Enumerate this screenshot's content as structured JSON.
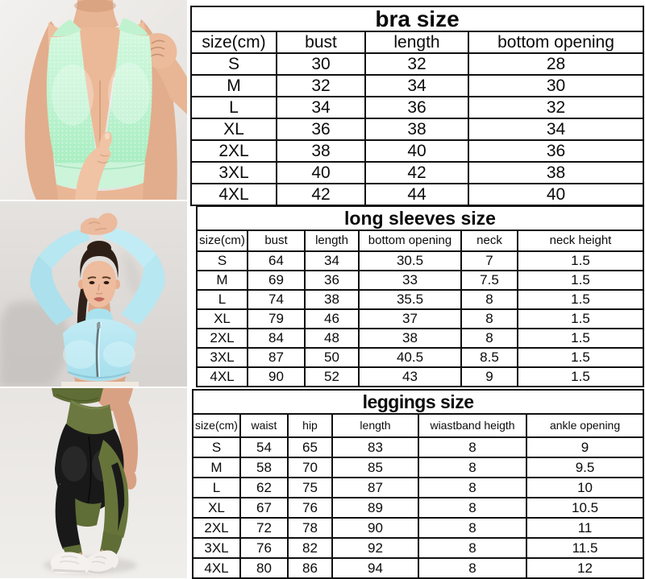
{
  "photos": [
    {
      "alt": "Model torso wearing a mint green textured halter sports bra, one hand adjusting the shoulder strap and the other at the center of the bra",
      "accent_color": "#b9f0c9"
    },
    {
      "alt": "Model with arms raised overhead wearing a light blue zip-front long sleeve crop top",
      "accent_color": "#b5e8f2"
    },
    {
      "alt": "Rear view of model legs wearing black and olive green color-block leggings with white sneakers",
      "accent_color": "#5f6d36",
      "secondary_color": "#1a1a1a"
    }
  ],
  "tables": [
    {
      "title": "bra size",
      "columns": [
        "size(cm)",
        "bust",
        "length",
        "bottom opening"
      ],
      "rows": [
        [
          "S",
          "30",
          "32",
          "28"
        ],
        [
          "M",
          "32",
          "34",
          "30"
        ],
        [
          "L",
          "34",
          "36",
          "32"
        ],
        [
          "XL",
          "36",
          "38",
          "34"
        ],
        [
          "2XL",
          "38",
          "40",
          "36"
        ],
        [
          "3XL",
          "40",
          "42",
          "38"
        ],
        [
          "4XL",
          "42",
          "44",
          "40"
        ]
      ]
    },
    {
      "title": "long sleeves size",
      "columns": [
        "size(cm)",
        "bust",
        "length",
        "bottom opening",
        "neck",
        "neck height"
      ],
      "rows": [
        [
          "S",
          "64",
          "34",
          "30.5",
          "7",
          "1.5"
        ],
        [
          "M",
          "69",
          "36",
          "33",
          "7.5",
          "1.5"
        ],
        [
          "L",
          "74",
          "38",
          "35.5",
          "8",
          "1.5"
        ],
        [
          "XL",
          "79",
          "46",
          "37",
          "8",
          "1.5"
        ],
        [
          "2XL",
          "84",
          "48",
          "38",
          "8",
          "1.5"
        ],
        [
          "3XL",
          "87",
          "50",
          "40.5",
          "8.5",
          "1.5"
        ],
        [
          "4XL",
          "90",
          "52",
          "43",
          "9",
          "1.5"
        ]
      ]
    },
    {
      "title": "leggings size",
      "columns": [
        "size(cm)",
        "waist",
        "hip",
        "length",
        "wiastband heigth",
        "ankle opening"
      ],
      "rows": [
        [
          "S",
          "54",
          "65",
          "83",
          "8",
          "9"
        ],
        [
          "M",
          "58",
          "70",
          "85",
          "8",
          "9.5"
        ],
        [
          "L",
          "62",
          "75",
          "87",
          "8",
          "10"
        ],
        [
          "XL",
          "67",
          "76",
          "89",
          "8",
          "10.5"
        ],
        [
          "2XL",
          "72",
          "78",
          "90",
          "8",
          "11"
        ],
        [
          "3XL",
          "76",
          "82",
          "92",
          "8",
          "11.5"
        ],
        [
          "4XL",
          "80",
          "86",
          "94",
          "8",
          "12"
        ]
      ]
    }
  ]
}
